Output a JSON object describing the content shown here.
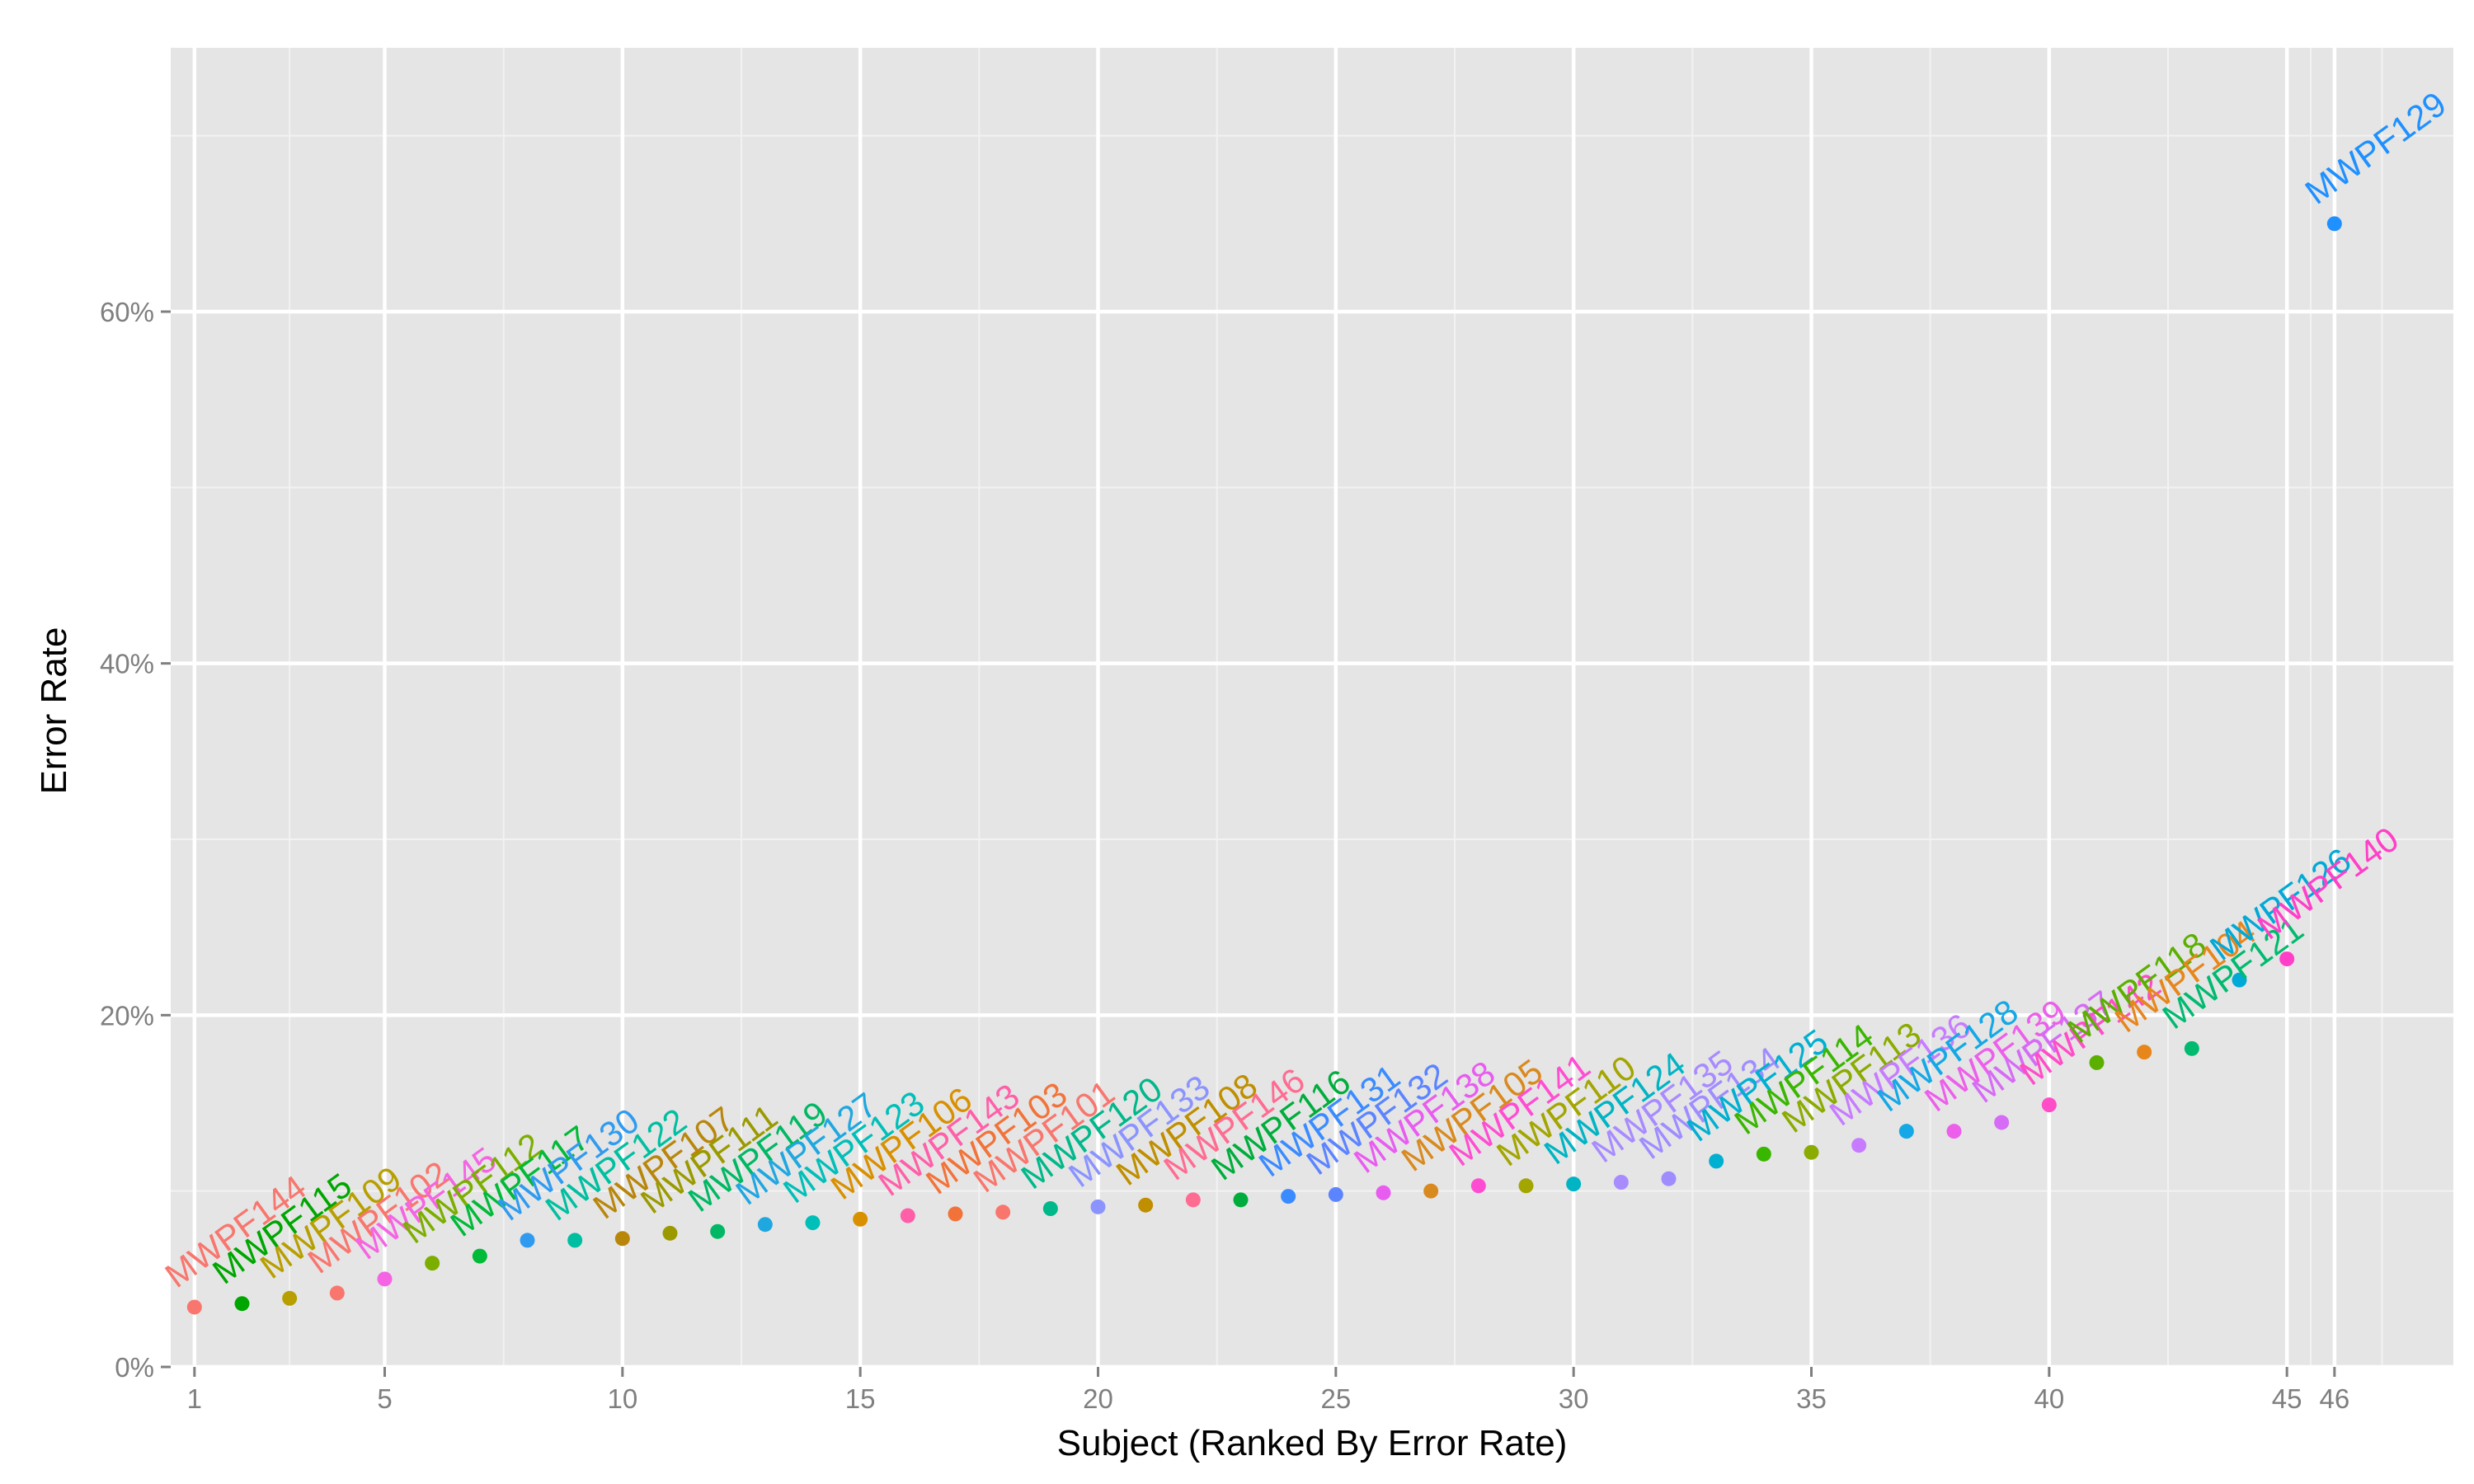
{
  "chart_data": {
    "type": "scatter",
    "xlabel": "Subject (Ranked By Error Rate)",
    "ylabel": "Error Rate",
    "x_ticks": [
      1,
      5,
      10,
      15,
      20,
      25,
      30,
      35,
      40,
      45,
      46
    ],
    "y_ticks": [
      0,
      20,
      40,
      60
    ],
    "y_tick_labels": [
      "0%",
      "20%",
      "40%",
      "60%"
    ],
    "xlim": [
      0.5,
      48.5
    ],
    "ylim": [
      0,
      75
    ],
    "grid": true,
    "legend": "none",
    "points": [
      {
        "rank": 1,
        "subject": "MWPF144",
        "error_rate": 3.4,
        "color": "#F8766D"
      },
      {
        "rank": 2,
        "subject": "MWPF115",
        "error_rate": 3.6,
        "color": "#00A600"
      },
      {
        "rank": 3,
        "subject": "MWPF109",
        "error_rate": 3.9,
        "color": "#B79F00"
      },
      {
        "rank": 4,
        "subject": "MWPF102",
        "error_rate": 4.2,
        "color": "#F8766D"
      },
      {
        "rank": 5,
        "subject": "MWPF145",
        "error_rate": 5.0,
        "color": "#F564E3"
      },
      {
        "rank": 6,
        "subject": "MWPF112",
        "error_rate": 5.9,
        "color": "#7CAE00"
      },
      {
        "rank": 7,
        "subject": "MWPF117",
        "error_rate": 6.3,
        "color": "#00BA38"
      },
      {
        "rank": 8,
        "subject": "MWPF130",
        "error_rate": 7.2,
        "color": "#2F9BF0"
      },
      {
        "rank": 9,
        "subject": "MWPF122",
        "error_rate": 7.2,
        "color": "#00BFA0"
      },
      {
        "rank": 10,
        "subject": "MWPF107",
        "error_rate": 7.3,
        "color": "#B8860B"
      },
      {
        "rank": 11,
        "subject": "MWPF111",
        "error_rate": 7.6,
        "color": "#9A9A00"
      },
      {
        "rank": 12,
        "subject": "MWPF119",
        "error_rate": 7.7,
        "color": "#00B863"
      },
      {
        "rank": 13,
        "subject": "MWPF127",
        "error_rate": 8.1,
        "color": "#1FA7E0"
      },
      {
        "rank": 14,
        "subject": "MWPF123",
        "error_rate": 8.2,
        "color": "#00BFB8"
      },
      {
        "rank": 15,
        "subject": "MWPF106",
        "error_rate": 8.4,
        "color": "#D89000"
      },
      {
        "rank": 16,
        "subject": "MWPF143",
        "error_rate": 8.6,
        "color": "#FF5FA8"
      },
      {
        "rank": 17,
        "subject": "MWPF103",
        "error_rate": 8.7,
        "color": "#F2733A"
      },
      {
        "rank": 18,
        "subject": "MWPF101",
        "error_rate": 8.8,
        "color": "#F8766D"
      },
      {
        "rank": 19,
        "subject": "MWPF120",
        "error_rate": 9.0,
        "color": "#00B88A"
      },
      {
        "rank": 20,
        "subject": "MWPF133",
        "error_rate": 9.1,
        "color": "#8B93FF"
      },
      {
        "rank": 21,
        "subject": "MWPF108",
        "error_rate": 9.2,
        "color": "#BF8F00"
      },
      {
        "rank": 22,
        "subject": "MWPF146",
        "error_rate": 9.5,
        "color": "#FF6C91"
      },
      {
        "rank": 23,
        "subject": "MWPF116",
        "error_rate": 9.5,
        "color": "#00AD3C"
      },
      {
        "rank": 24,
        "subject": "MWPF131",
        "error_rate": 9.7,
        "color": "#3A8BFF"
      },
      {
        "rank": 25,
        "subject": "MWPF132",
        "error_rate": 9.8,
        "color": "#5C84FF"
      },
      {
        "rank": 26,
        "subject": "MWPF138",
        "error_rate": 9.9,
        "color": "#E85CF0"
      },
      {
        "rank": 27,
        "subject": "MWPF105",
        "error_rate": 10.0,
        "color": "#D98A1F"
      },
      {
        "rank": 28,
        "subject": "MWPF141",
        "error_rate": 10.3,
        "color": "#FF4DD2"
      },
      {
        "rank": 29,
        "subject": "MWPF110",
        "error_rate": 10.3,
        "color": "#A3A500"
      },
      {
        "rank": 30,
        "subject": "MWPF124",
        "error_rate": 10.4,
        "color": "#00B4C4"
      },
      {
        "rank": 31,
        "subject": "MWPF135",
        "error_rate": 10.5,
        "color": "#A88BFF"
      },
      {
        "rank": 32,
        "subject": "MWPF134",
        "error_rate": 10.7,
        "color": "#9F8CFF"
      },
      {
        "rank": 33,
        "subject": "MWPF125",
        "error_rate": 11.7,
        "color": "#00B0D0"
      },
      {
        "rank": 34,
        "subject": "MWPF114",
        "error_rate": 12.1,
        "color": "#39B600"
      },
      {
        "rank": 35,
        "subject": "MWPF113",
        "error_rate": 12.2,
        "color": "#8AAB00"
      },
      {
        "rank": 36,
        "subject": "MWPF136",
        "error_rate": 12.6,
        "color": "#C77CFF"
      },
      {
        "rank": 37,
        "subject": "MWPF128",
        "error_rate": 13.4,
        "color": "#14A8E6"
      },
      {
        "rank": 38,
        "subject": "MWPF139",
        "error_rate": 13.4,
        "color": "#EC5FEA"
      },
      {
        "rank": 39,
        "subject": "MWPF137",
        "error_rate": 13.9,
        "color": "#D66BF5"
      },
      {
        "rank": 40,
        "subject": "MWPF142",
        "error_rate": 14.9,
        "color": "#FF4CC8"
      },
      {
        "rank": 41,
        "subject": "MWPF118",
        "error_rate": 17.3,
        "color": "#5BAF00"
      },
      {
        "rank": 42,
        "subject": "MWPF104",
        "error_rate": 17.9,
        "color": "#E7861B"
      },
      {
        "rank": 43,
        "subject": "MWPF121",
        "error_rate": 18.1,
        "color": "#00BA6F"
      },
      {
        "rank": 44,
        "subject": "MWPF126",
        "error_rate": 22.0,
        "color": "#00A9D6"
      },
      {
        "rank": 45,
        "subject": "MWPF140",
        "error_rate": 23.2,
        "color": "#FF3FC8"
      },
      {
        "rank": 46,
        "subject": "MWPF129",
        "error_rate": 65.0,
        "color": "#1E90FF"
      }
    ]
  }
}
